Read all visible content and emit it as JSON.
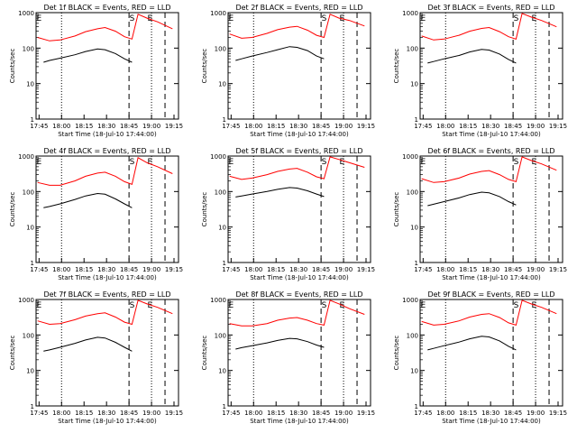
{
  "chart_data": [
    {
      "type": "line",
      "title": "Det 1f BLACK = Events, RED = LLD",
      "xlabel": "Start Time (18-Jul-10 17:44:00)",
      "ylabel": "Counts/sec",
      "y_scale": "log",
      "ylim": [
        1,
        1000
      ],
      "yticks": [
        "1",
        "10",
        "100",
        "1000"
      ],
      "xticks": [
        "17:45",
        "18:00",
        "18:15",
        "18:30",
        "18:45",
        "19:00",
        "19:15"
      ],
      "markers": [
        "E",
        "S",
        "E"
      ],
      "series": [
        {
          "name": "Events",
          "color": "#000000",
          "x": [
            4,
            8,
            15,
            25,
            32,
            40,
            45,
            52,
            58,
            63
          ],
          "values": [
            40,
            45,
            52,
            65,
            80,
            95,
            90,
            70,
            50,
            40
          ]
        },
        {
          "name": "LLD",
          "color": "#ff0000",
          "x": [
            0,
            8,
            15,
            25,
            32,
            40,
            45,
            52,
            58,
            63,
            67,
            73,
            80,
            90
          ],
          "values": [
            200,
            160,
            170,
            220,
            290,
            350,
            380,
            300,
            210,
            180,
            900,
            700,
            550,
            350
          ]
        }
      ]
    },
    {
      "type": "line",
      "title": "Det 2f BLACK = Events, RED = LLD",
      "xlabel": "Start Time (18-Jul-10 17:44:00)",
      "ylabel": "Counts/sec",
      "y_scale": "log",
      "ylim": [
        1,
        1000
      ],
      "yticks": [
        "1",
        "10",
        "100",
        "1000"
      ],
      "xticks": [
        "17:45",
        "18:00",
        "18:15",
        "18:30",
        "18:45",
        "19:00",
        "19:15"
      ],
      "markers": [
        "E",
        "S",
        "E"
      ],
      "series": [
        {
          "name": "Events",
          "color": "#000000",
          "x": [
            4,
            8,
            15,
            25,
            32,
            40,
            45,
            52,
            58,
            63
          ],
          "values": [
            45,
            50,
            60,
            75,
            90,
            110,
            105,
            85,
            60,
            50
          ]
        },
        {
          "name": "LLD",
          "color": "#ff0000",
          "x": [
            0,
            8,
            15,
            25,
            32,
            40,
            45,
            52,
            58,
            63,
            67,
            73,
            80,
            90
          ],
          "values": [
            250,
            190,
            200,
            260,
            330,
            390,
            410,
            320,
            230,
            200,
            900,
            700,
            600,
            420
          ]
        }
      ]
    },
    {
      "type": "line",
      "title": "Det 3f BLACK = Events, RED = LLD",
      "xlabel": "Start Time (18-Jul-10 17:44:00)",
      "ylabel": "Counts/sec",
      "y_scale": "log",
      "ylim": [
        1,
        1000
      ],
      "yticks": [
        "1",
        "10",
        "100",
        "1000"
      ],
      "xticks": [
        "17:45",
        "18:00",
        "18:15",
        "18:30",
        "18:45",
        "19:00",
        "19:15"
      ],
      "markers": [
        "E",
        "S",
        "E"
      ],
      "series": [
        {
          "name": "Events",
          "color": "#000000",
          "x": [
            4,
            8,
            15,
            25,
            32,
            40,
            45,
            52,
            58,
            63
          ],
          "values": [
            38,
            42,
            50,
            62,
            78,
            92,
            88,
            68,
            48,
            38
          ]
        },
        {
          "name": "LLD",
          "color": "#ff0000",
          "x": [
            0,
            8,
            15,
            25,
            32,
            40,
            45,
            52,
            58,
            63,
            67,
            73,
            80,
            90
          ],
          "values": [
            220,
            170,
            180,
            230,
            300,
            360,
            380,
            290,
            210,
            180,
            950,
            750,
            600,
            400
          ]
        }
      ]
    },
    {
      "type": "line",
      "title": "Det 4f BLACK = Events, RED = LLD",
      "xlabel": "Start Time (18-Jul-10 17:44:00)",
      "ylabel": "Counts/sec",
      "y_scale": "log",
      "ylim": [
        1,
        1000
      ],
      "yticks": [
        "1",
        "10",
        "100",
        "1000"
      ],
      "xticks": [
        "17:45",
        "18:00",
        "18:15",
        "18:30",
        "18:45",
        "19:00",
        "19:15"
      ],
      "markers": [
        "E",
        "S",
        "E"
      ],
      "series": [
        {
          "name": "Events",
          "color": "#000000",
          "x": [
            4,
            8,
            15,
            25,
            32,
            40,
            45,
            52,
            58,
            63
          ],
          "values": [
            35,
            38,
            45,
            60,
            75,
            88,
            84,
            62,
            45,
            35
          ]
        },
        {
          "name": "LLD",
          "color": "#ff0000",
          "x": [
            0,
            8,
            15,
            25,
            32,
            40,
            45,
            52,
            58,
            63,
            67,
            73,
            80,
            90
          ],
          "values": [
            180,
            150,
            150,
            200,
            270,
            330,
            350,
            270,
            190,
            160,
            900,
            650,
            500,
            320
          ]
        }
      ]
    },
    {
      "type": "line",
      "title": "Det 5f BLACK = Events, RED = LLD",
      "xlabel": "Start Time (18-Jul-10 17:44:00)",
      "ylabel": "Counts/sec",
      "y_scale": "log",
      "ylim": [
        1,
        1000
      ],
      "yticks": [
        "1",
        "10",
        "100",
        "1000"
      ],
      "xticks": [
        "17:45",
        "18:00",
        "18:15",
        "18:30",
        "18:45",
        "19:00",
        "19:15"
      ],
      "markers": [
        "E",
        "S",
        "E"
      ],
      "series": [
        {
          "name": "Events",
          "color": "#000000",
          "x": [
            4,
            8,
            15,
            25,
            32,
            40,
            45,
            52,
            58,
            63
          ],
          "values": [
            70,
            75,
            85,
            100,
            115,
            130,
            125,
            105,
            85,
            72
          ]
        },
        {
          "name": "LLD",
          "color": "#ff0000",
          "x": [
            0,
            8,
            15,
            25,
            32,
            40,
            45,
            52,
            58,
            63,
            67,
            73,
            80,
            90
          ],
          "values": [
            270,
            220,
            240,
            300,
            370,
            430,
            450,
            350,
            260,
            230,
            950,
            800,
            650,
            480
          ]
        }
      ]
    },
    {
      "type": "line",
      "title": "Det 6f BLACK = Events, RED = LLD",
      "xlabel": "Start Time (18-Jul-10 17:44:00)",
      "ylabel": "Counts/sec",
      "y_scale": "log",
      "ylim": [
        1,
        1000
      ],
      "yticks": [
        "1",
        "10",
        "100",
        "1000"
      ],
      "xticks": [
        "17:45",
        "18:00",
        "18:15",
        "18:30",
        "18:45",
        "19:00",
        "19:15"
      ],
      "markers": [
        "E",
        "S",
        "E"
      ],
      "series": [
        {
          "name": "Events",
          "color": "#000000",
          "x": [
            4,
            8,
            15,
            25,
            32,
            40,
            45,
            52,
            58,
            63
          ],
          "values": [
            40,
            44,
            52,
            66,
            82,
            96,
            92,
            72,
            52,
            42
          ]
        },
        {
          "name": "LLD",
          "color": "#ff0000",
          "x": [
            0,
            8,
            15,
            25,
            32,
            40,
            45,
            52,
            58,
            63,
            67,
            73,
            80,
            90
          ],
          "values": [
            230,
            180,
            190,
            240,
            310,
            370,
            390,
            300,
            220,
            190,
            950,
            750,
            600,
            400
          ]
        }
      ]
    },
    {
      "type": "line",
      "title": "Det 7f BLACK = Events, RED = LLD",
      "xlabel": "Start Time (18-Jul-10 17:44:00)",
      "ylabel": "Counts/sec",
      "y_scale": "log",
      "ylim": [
        1,
        1000
      ],
      "yticks": [
        "1",
        "10",
        "100",
        "1000"
      ],
      "xticks": [
        "17:45",
        "18:00",
        "18:15",
        "18:30",
        "18:45",
        "19:00",
        "19:15"
      ],
      "markers": [
        "E",
        "S",
        "E"
      ],
      "series": [
        {
          "name": "Events",
          "color": "#000000",
          "x": [
            4,
            8,
            15,
            25,
            32,
            40,
            45,
            52,
            58,
            63
          ],
          "values": [
            35,
            38,
            45,
            58,
            72,
            86,
            82,
            62,
            45,
            35
          ]
        },
        {
          "name": "LLD",
          "color": "#ff0000",
          "x": [
            0,
            8,
            15,
            25,
            32,
            40,
            45,
            52,
            58,
            63,
            67,
            73,
            80,
            90
          ],
          "values": [
            250,
            200,
            210,
            270,
            340,
            400,
            420,
            320,
            230,
            200,
            950,
            750,
            600,
            400
          ]
        }
      ]
    },
    {
      "type": "line",
      "title": "Det 8f BLACK = Events, RED = LLD",
      "xlabel": "Start Time (18-Jul-10 17:44:00)",
      "ylabel": "Counts/sec",
      "y_scale": "log",
      "ylim": [
        1,
        1000
      ],
      "yticks": [
        "1",
        "10",
        "100",
        "1000"
      ],
      "xticks": [
        "17:45",
        "18:00",
        "18:15",
        "18:30",
        "18:45",
        "19:00",
        "19:15"
      ],
      "markers": [
        "E",
        "S",
        "E"
      ],
      "series": [
        {
          "name": "Events",
          "color": "#000000",
          "x": [
            4,
            8,
            15,
            25,
            32,
            40,
            45,
            52,
            58,
            63
          ],
          "values": [
            40,
            44,
            50,
            60,
            70,
            80,
            78,
            65,
            52,
            45
          ]
        },
        {
          "name": "LLD",
          "color": "#ff0000",
          "x": [
            0,
            8,
            15,
            25,
            32,
            40,
            45,
            52,
            58,
            63,
            67,
            73,
            80,
            90
          ],
          "values": [
            210,
            180,
            180,
            210,
            260,
            300,
            310,
            260,
            210,
            190,
            950,
            750,
            550,
            380
          ]
        }
      ]
    },
    {
      "type": "line",
      "title": "Det 9f BLACK = Events, RED = LLD",
      "xlabel": "Start Time (18-Jul-10 17:44:00)",
      "ylabel": "Counts/sec",
      "y_scale": "log",
      "ylim": [
        1,
        1000
      ],
      "yticks": [
        "1",
        "10",
        "100",
        "1000"
      ],
      "xticks": [
        "17:45",
        "18:00",
        "18:15",
        "18:30",
        "18:45",
        "19:00",
        "19:15"
      ],
      "markers": [
        "E",
        "S",
        "E"
      ],
      "series": [
        {
          "name": "Events",
          "color": "#000000",
          "x": [
            4,
            8,
            15,
            25,
            32,
            40,
            45,
            52,
            58,
            63
          ],
          "values": [
            38,
            42,
            50,
            63,
            78,
            92,
            88,
            68,
            48,
            38
          ]
        },
        {
          "name": "LLD",
          "color": "#ff0000",
          "x": [
            0,
            8,
            15,
            25,
            32,
            40,
            45,
            52,
            58,
            63,
            67,
            73,
            80,
            90
          ],
          "values": [
            240,
            190,
            200,
            250,
            320,
            380,
            400,
            310,
            220,
            190,
            950,
            750,
            600,
            400
          ]
        }
      ]
    }
  ]
}
